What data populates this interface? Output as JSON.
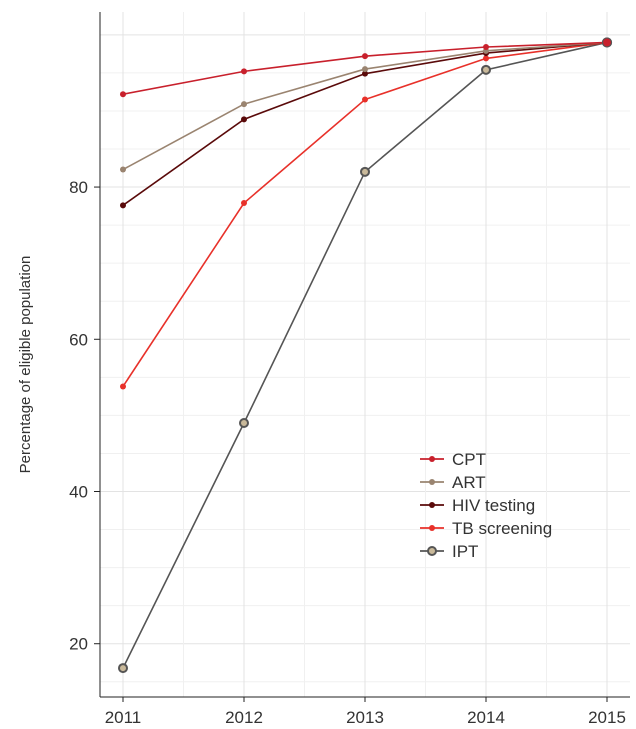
{
  "chart_data": {
    "type": "line",
    "title": "",
    "xlabel": "",
    "ylabel": "Percentage of eligible population",
    "x": [
      2011,
      2012,
      2013,
      2014,
      2015
    ],
    "ylim": [
      13,
      103
    ],
    "yticks": [
      20,
      40,
      60,
      80
    ],
    "grid": true,
    "legend_position": "lower-right",
    "series": [
      {
        "name": "CPT",
        "color": "#c8202c",
        "marker": "dot",
        "values": [
          92.2,
          95.2,
          97.2,
          98.4,
          99.0
        ]
      },
      {
        "name": "ART",
        "color": "#9a8470",
        "marker": "dot",
        "values": [
          82.3,
          90.9,
          95.5,
          97.9,
          99.0
        ]
      },
      {
        "name": "HIV testing",
        "color": "#5a0a0a",
        "marker": "dot",
        "values": [
          77.6,
          88.9,
          94.9,
          97.6,
          99.0
        ]
      },
      {
        "name": "TB screening",
        "color": "#e8312a",
        "marker": "dot",
        "values": [
          53.8,
          77.9,
          91.5,
          96.9,
          99.0
        ]
      },
      {
        "name": "IPT",
        "color": "#555555",
        "marker": "ring",
        "values": [
          16.8,
          49.0,
          82.0,
          95.4,
          99.0
        ]
      }
    ]
  }
}
